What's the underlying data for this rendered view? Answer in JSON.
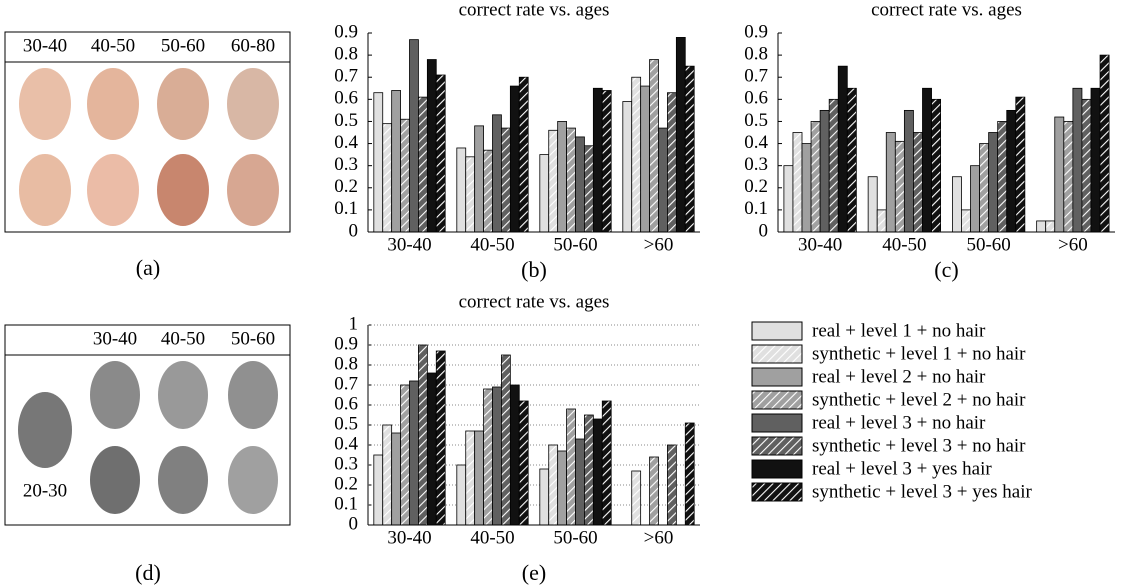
{
  "chart_data": [
    {
      "type": "bar",
      "title": "correct rate vs. ages",
      "caption": "(b)",
      "categories": [
        "30-40",
        "40-50",
        "50-60",
        ">60"
      ],
      "series": [
        {
          "color": "#e0e0e0",
          "hatch": false,
          "values": [
            0.63,
            0.38,
            0.35,
            0.59
          ]
        },
        {
          "color": "#e0e0e0",
          "hatch": true,
          "values": [
            0.49,
            0.34,
            0.46,
            0.7
          ]
        },
        {
          "color": "#a0a0a0",
          "hatch": false,
          "values": [
            0.64,
            0.48,
            0.5,
            0.66
          ]
        },
        {
          "color": "#a0a0a0",
          "hatch": true,
          "values": [
            0.51,
            0.37,
            0.47,
            0.78
          ]
        },
        {
          "color": "#606060",
          "hatch": false,
          "values": [
            0.87,
            0.53,
            0.43,
            0.47
          ]
        },
        {
          "color": "#606060",
          "hatch": true,
          "values": [
            0.61,
            0.47,
            0.39,
            0.63
          ]
        },
        {
          "color": "#111111",
          "hatch": false,
          "values": [
            0.78,
            0.66,
            0.65,
            0.88
          ]
        },
        {
          "color": "#111111",
          "hatch": true,
          "values": [
            0.71,
            0.7,
            0.64,
            0.75
          ]
        }
      ],
      "ylim": [
        0,
        0.9
      ],
      "yticks": [
        0,
        0.1,
        0.2,
        0.3,
        0.4,
        0.5,
        0.6,
        0.7,
        0.8,
        0.9
      ],
      "grid": false
    },
    {
      "type": "bar",
      "title": "correct rate vs. ages",
      "caption": "(c)",
      "categories": [
        "30-40",
        "40-50",
        "50-60",
        ">60"
      ],
      "series": [
        {
          "color": "#e0e0e0",
          "hatch": false,
          "values": [
            0.3,
            0.25,
            0.25,
            0.05
          ]
        },
        {
          "color": "#e0e0e0",
          "hatch": true,
          "values": [
            0.45,
            0.1,
            0.1,
            0.05
          ]
        },
        {
          "color": "#a0a0a0",
          "hatch": false,
          "values": [
            0.4,
            0.45,
            0.3,
            0.52
          ]
        },
        {
          "color": "#a0a0a0",
          "hatch": true,
          "values": [
            0.5,
            0.41,
            0.4,
            0.5
          ]
        },
        {
          "color": "#606060",
          "hatch": false,
          "values": [
            0.55,
            0.55,
            0.45,
            0.65
          ]
        },
        {
          "color": "#606060",
          "hatch": true,
          "values": [
            0.6,
            0.45,
            0.5,
            0.6
          ]
        },
        {
          "color": "#111111",
          "hatch": false,
          "values": [
            0.75,
            0.65,
            0.55,
            0.65
          ]
        },
        {
          "color": "#111111",
          "hatch": true,
          "values": [
            0.65,
            0.6,
            0.61,
            0.8
          ]
        }
      ],
      "ylim": [
        0,
        0.9
      ],
      "yticks": [
        0,
        0.1,
        0.2,
        0.3,
        0.4,
        0.5,
        0.6,
        0.7,
        0.8,
        0.9
      ],
      "grid": false
    },
    {
      "type": "bar",
      "title": "correct rate vs. ages",
      "caption": "(e)",
      "categories": [
        "30-40",
        "40-50",
        "50-60",
        ">60"
      ],
      "series": [
        {
          "name": "real + level 1 + no hair",
          "color": "#e0e0e0",
          "hatch": false,
          "values": [
            0.35,
            0.3,
            0.28,
            null
          ]
        },
        {
          "name": "synthetic + level 1 + no hair",
          "color": "#e0e0e0",
          "hatch": true,
          "values": [
            0.5,
            0.47,
            0.4,
            0.27
          ]
        },
        {
          "name": "real + level 2 + no hair",
          "color": "#a0a0a0",
          "hatch": false,
          "values": [
            0.46,
            0.47,
            0.37,
            null
          ]
        },
        {
          "name": "synthetic + level 2 + no hair",
          "color": "#a0a0a0",
          "hatch": true,
          "values": [
            0.7,
            0.68,
            0.58,
            0.34
          ]
        },
        {
          "name": "real + level 3 + no hair",
          "color": "#606060",
          "hatch": false,
          "values": [
            0.72,
            0.69,
            0.43,
            null
          ]
        },
        {
          "name": "synthetic + level 3 + no hair",
          "color": "#606060",
          "hatch": true,
          "values": [
            0.9,
            0.85,
            0.55,
            0.4
          ]
        },
        {
          "name": "real + level 3 + yes hair",
          "color": "#111111",
          "hatch": false,
          "values": [
            0.76,
            0.7,
            0.53,
            null
          ]
        },
        {
          "name": "synthetic + level 3 + yes hair",
          "color": "#111111",
          "hatch": true,
          "values": [
            0.87,
            0.62,
            0.62,
            0.51
          ]
        }
      ],
      "ylim": [
        0,
        1
      ],
      "yticks": [
        0,
        0.1,
        0.2,
        0.3,
        0.4,
        0.5,
        0.6,
        0.7,
        0.8,
        0.9,
        1
      ],
      "grid": true,
      "legend": true
    }
  ],
  "figure_a": {
    "labels": [
      "30-40",
      "40-50",
      "50-60",
      "60-80"
    ],
    "caption": "(a)"
  },
  "figure_d": {
    "labels": [
      "30-40",
      "40-50",
      "50-60"
    ],
    "source_label": "20-30",
    "caption": "(d)"
  }
}
